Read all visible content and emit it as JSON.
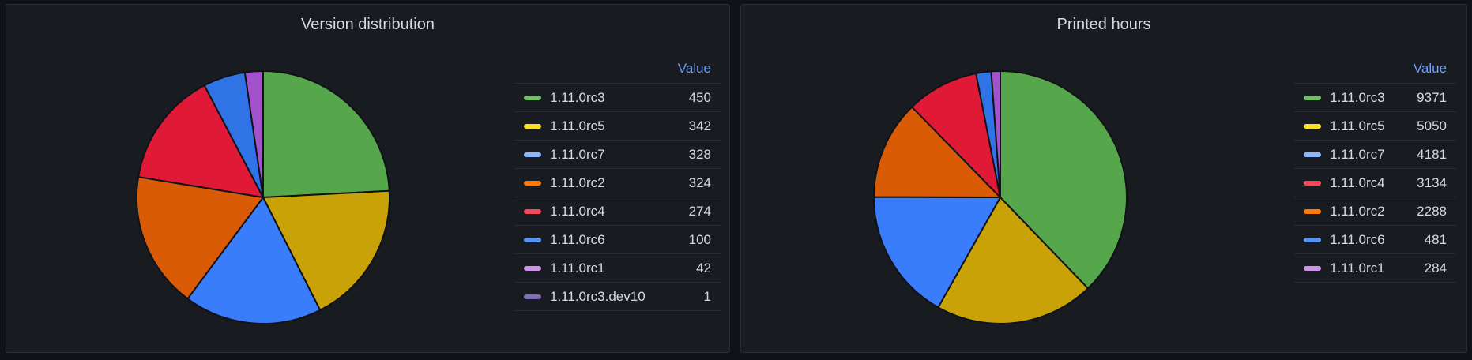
{
  "chart_data": [
    {
      "type": "pie",
      "title": "Version distribution",
      "legend_header": "Value",
      "legend_placement": "right",
      "slices": [
        {
          "label": "1.11.0rc3",
          "value": 450,
          "color": "#56a64b"
        },
        {
          "label": "1.11.0rc5",
          "value": 342,
          "color": "#c8a206"
        },
        {
          "label": "1.11.0rc7",
          "value": 328,
          "color": "#3a7dfb"
        },
        {
          "label": "1.11.0rc2",
          "value": 324,
          "color": "#d95b05"
        },
        {
          "label": "1.11.0rc4",
          "value": 274,
          "color": "#e01a36"
        },
        {
          "label": "1.11.0rc6",
          "value": 100,
          "color": "#2f73e6"
        },
        {
          "label": "1.11.0rc1",
          "value": 42,
          "color": "#a352cc"
        },
        {
          "label": "1.11.0rc3.dev10",
          "value": 1,
          "color": "#7b64b4"
        }
      ]
    },
    {
      "type": "pie",
      "title": "Printed hours",
      "legend_header": "Value",
      "legend_placement": "right",
      "slices": [
        {
          "label": "1.11.0rc3",
          "value": 9371,
          "color": "#56a64b"
        },
        {
          "label": "1.11.0rc5",
          "value": 5050,
          "color": "#c8a206"
        },
        {
          "label": "1.11.0rc7",
          "value": 4181,
          "color": "#3a7dfb"
        },
        {
          "label": "1.11.0rc4",
          "value": 3134,
          "color": "#d95b05"
        },
        {
          "label": "1.11.0rc2",
          "value": 2288,
          "color": "#e01a36"
        },
        {
          "label": "1.11.0rc6",
          "value": 481,
          "color": "#2f73e6"
        },
        {
          "label": "1.11.0rc1",
          "value": 284,
          "color": "#a352cc"
        }
      ]
    }
  ],
  "legend_colors": {
    "1.11.0rc3": "#73bf69",
    "1.11.0rc5": "#fade2a",
    "1.11.0rc7": "#8ab8ff",
    "1.11.0rc2": "#ff780a",
    "1.11.0rc4": "#f2495c",
    "1.11.0rc6": "#5794f2",
    "1.11.0rc1": "#ca95e5",
    "1.11.0rc3.dev10": "#806eb7"
  }
}
